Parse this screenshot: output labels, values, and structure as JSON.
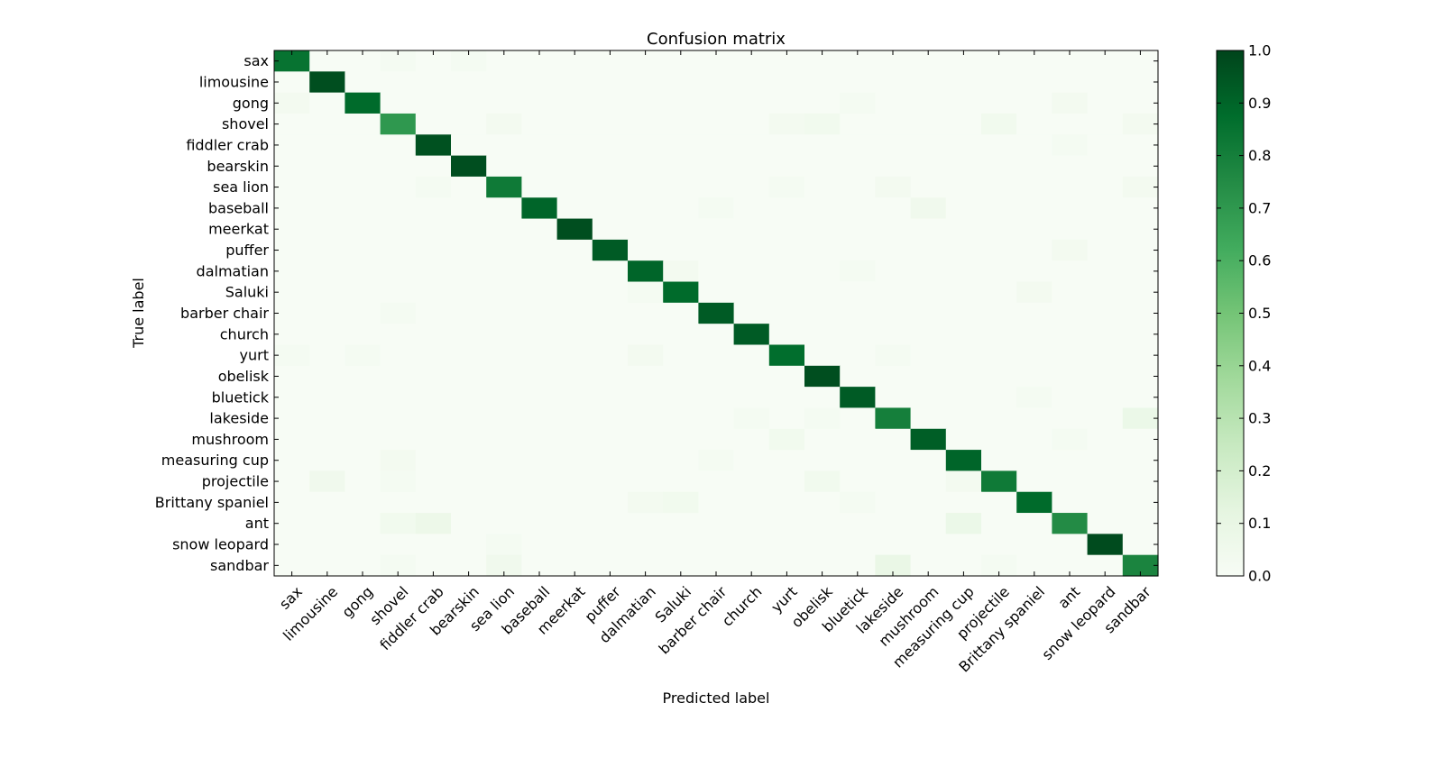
{
  "chart_data": {
    "type": "heatmap",
    "title": "Confusion matrix",
    "xlabel": "Predicted label",
    "ylabel": "True label",
    "labels": [
      "sax",
      "limousine",
      "gong",
      "shovel",
      "fiddler crab",
      "bearskin",
      "sea lion",
      "baseball",
      "meerkat",
      "puffer",
      "dalmatian",
      "Saluki",
      "barber chair",
      "church",
      "yurt",
      "obelisk",
      "bluetick",
      "lakeside",
      "mushroom",
      "measuring cup",
      "projectile",
      "Brittany spaniel",
      "ant",
      "snow leopard",
      "sandbar"
    ],
    "diagonal": [
      0.85,
      0.97,
      0.88,
      0.7,
      0.96,
      0.97,
      0.82,
      0.9,
      0.97,
      0.93,
      0.9,
      0.88,
      0.93,
      0.93,
      0.87,
      0.97,
      0.93,
      0.8,
      0.92,
      0.9,
      0.82,
      0.88,
      0.75,
      0.98,
      0.78
    ],
    "off_diagonal": [
      {
        "row": 0,
        "col": 3,
        "value": 0.02
      },
      {
        "row": 0,
        "col": 5,
        "value": 0.02
      },
      {
        "row": 2,
        "col": 0,
        "value": 0.03
      },
      {
        "row": 2,
        "col": 16,
        "value": 0.02
      },
      {
        "row": 2,
        "col": 22,
        "value": 0.03
      },
      {
        "row": 3,
        "col": 6,
        "value": 0.03
      },
      {
        "row": 3,
        "col": 14,
        "value": 0.03
      },
      {
        "row": 3,
        "col": 15,
        "value": 0.04
      },
      {
        "row": 3,
        "col": 20,
        "value": 0.04
      },
      {
        "row": 3,
        "col": 24,
        "value": 0.03
      },
      {
        "row": 4,
        "col": 22,
        "value": 0.02
      },
      {
        "row": 6,
        "col": 4,
        "value": 0.02
      },
      {
        "row": 6,
        "col": 14,
        "value": 0.02
      },
      {
        "row": 6,
        "col": 17,
        "value": 0.03
      },
      {
        "row": 6,
        "col": 24,
        "value": 0.03
      },
      {
        "row": 7,
        "col": 12,
        "value": 0.02
      },
      {
        "row": 7,
        "col": 18,
        "value": 0.05
      },
      {
        "row": 9,
        "col": 22,
        "value": 0.03
      },
      {
        "row": 10,
        "col": 11,
        "value": 0.03
      },
      {
        "row": 10,
        "col": 16,
        "value": 0.02
      },
      {
        "row": 11,
        "col": 10,
        "value": 0.02
      },
      {
        "row": 11,
        "col": 21,
        "value": 0.03
      },
      {
        "row": 12,
        "col": 3,
        "value": 0.02
      },
      {
        "row": 14,
        "col": 0,
        "value": 0.02
      },
      {
        "row": 14,
        "col": 2,
        "value": 0.02
      },
      {
        "row": 14,
        "col": 10,
        "value": 0.03
      },
      {
        "row": 14,
        "col": 17,
        "value": 0.02
      },
      {
        "row": 16,
        "col": 21,
        "value": 0.02
      },
      {
        "row": 17,
        "col": 13,
        "value": 0.02
      },
      {
        "row": 17,
        "col": 15,
        "value": 0.02
      },
      {
        "row": 17,
        "col": 24,
        "value": 0.08
      },
      {
        "row": 18,
        "col": 14,
        "value": 0.04
      },
      {
        "row": 18,
        "col": 22,
        "value": 0.02
      },
      {
        "row": 19,
        "col": 3,
        "value": 0.03
      },
      {
        "row": 19,
        "col": 12,
        "value": 0.02
      },
      {
        "row": 20,
        "col": 1,
        "value": 0.05
      },
      {
        "row": 20,
        "col": 3,
        "value": 0.02
      },
      {
        "row": 20,
        "col": 15,
        "value": 0.04
      },
      {
        "row": 20,
        "col": 19,
        "value": 0.03
      },
      {
        "row": 21,
        "col": 10,
        "value": 0.03
      },
      {
        "row": 21,
        "col": 11,
        "value": 0.04
      },
      {
        "row": 21,
        "col": 16,
        "value": 0.02
      },
      {
        "row": 22,
        "col": 3,
        "value": 0.04
      },
      {
        "row": 22,
        "col": 4,
        "value": 0.07
      },
      {
        "row": 22,
        "col": 19,
        "value": 0.08
      },
      {
        "row": 23,
        "col": 6,
        "value": 0.02
      },
      {
        "row": 24,
        "col": 3,
        "value": 0.02
      },
      {
        "row": 24,
        "col": 6,
        "value": 0.05
      },
      {
        "row": 24,
        "col": 17,
        "value": 0.09
      },
      {
        "row": 24,
        "col": 20,
        "value": 0.02
      }
    ],
    "colorbar": {
      "min": 0.0,
      "max": 1.0,
      "ticks": [
        "0.0",
        "0.1",
        "0.2",
        "0.3",
        "0.4",
        "0.5",
        "0.6",
        "0.7",
        "0.8",
        "0.9",
        "1.0"
      ]
    },
    "colormap": [
      "#f7fcf5",
      "#e5f5e0",
      "#c7e9c0",
      "#a1d99b",
      "#74c476",
      "#41ab5d",
      "#238b45",
      "#006d2c",
      "#00441b"
    ],
    "grid": false
  }
}
